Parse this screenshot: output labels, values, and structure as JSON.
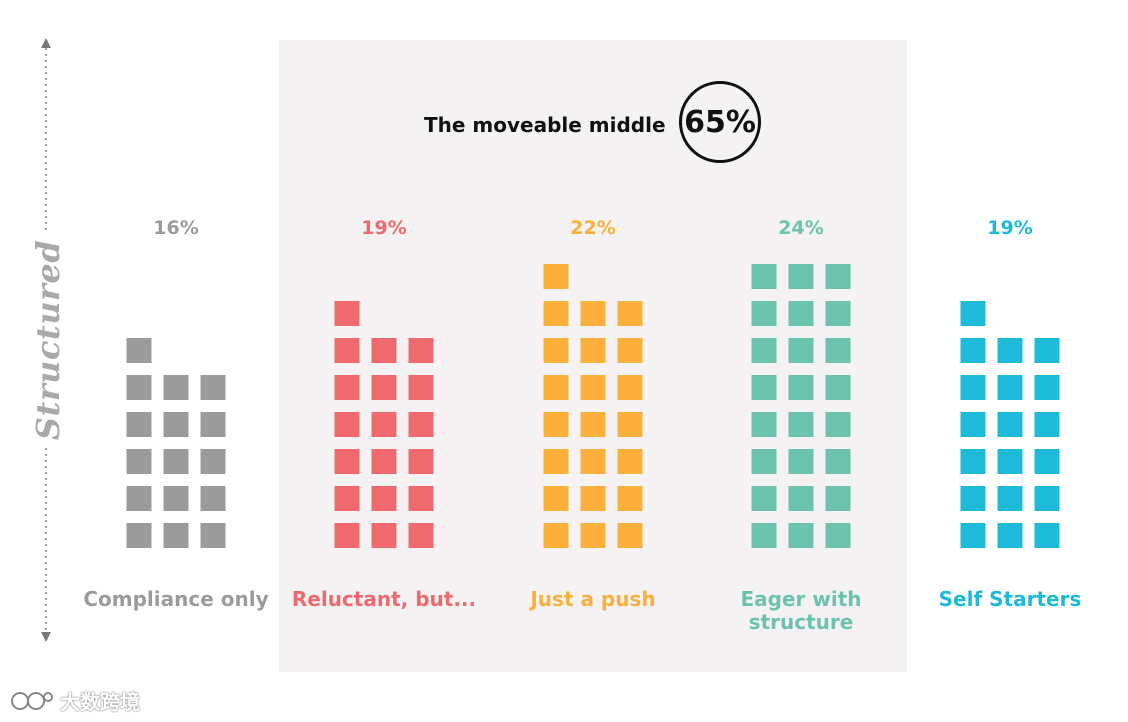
{
  "axis": {
    "label": "Structured"
  },
  "moveable_middle": {
    "label": "The moveable middle",
    "value": "65%"
  },
  "watermark": {
    "text": "大数跨境"
  },
  "chart_data": {
    "type": "bar",
    "style": "waffle-squares",
    "categories": [
      "Compliance only",
      "Reluctant, but...",
      "Just a push",
      "Eager with structure",
      "Self Starters"
    ],
    "category_lines": [
      [
        "Compliance only"
      ],
      [
        "Reluctant, but..."
      ],
      [
        "Just a push"
      ],
      [
        "Eager with",
        "structure"
      ],
      [
        "Self Starters"
      ]
    ],
    "values": [
      16,
      19,
      22,
      24,
      19
    ],
    "value_labels": [
      "16%",
      "19%",
      "22%",
      "24%",
      "19%"
    ],
    "colors": [
      "#9b9b9b",
      "#ee6a6e",
      "#fbb03b",
      "#6cc3ad",
      "#1dbbd9"
    ],
    "highlight_categories": [
      "Reluctant, but...",
      "Just a push",
      "Eager with structure"
    ],
    "highlight_total": "65%",
    "title": "",
    "xlabel": "",
    "ylabel": "Structured"
  }
}
